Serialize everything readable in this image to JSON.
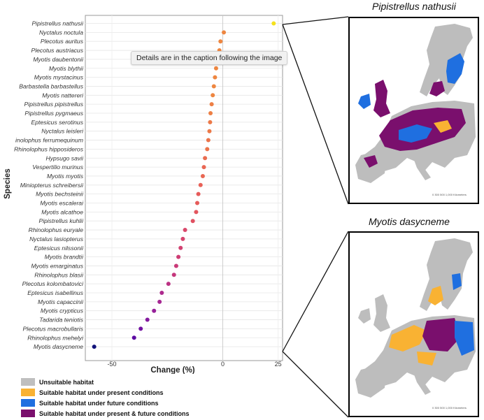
{
  "chart_data": {
    "type": "scatter",
    "ylabel": "Species",
    "xlabel": "Change (%)",
    "x_ticks": [
      "-50",
      "0",
      "25"
    ],
    "x_tick_values": [
      -50,
      0,
      25
    ],
    "xlim": [
      -62,
      27
    ],
    "grid": true,
    "categories": [
      "Pipistrellus nathusii",
      "Nyctalus noctula",
      "Plecotus auritus",
      "Plecotus austriacus",
      "Myotis daubentonii",
      "Myotis blythii",
      "Myotis mystacinus",
      "Barbastella barbastellus",
      "Myotis nattereri",
      "Pipistrellus pipistrellus",
      "Pipistrellus pygmaeus",
      "Eptesicus serotinus",
      "Nyctalus leisleri",
      "inolophus ferrumequinum",
      "Rhinolophus hipposideros",
      "Hypsugo savii",
      "Vespertilio murinus",
      "Myotis myotis",
      "Miniopterus schreibersii",
      "Myotis bechsteinii",
      "Myotis escalerai",
      "Myotis alcathoe",
      "Pipistrellus kuhlii",
      "Rhinolophus euryale",
      "Nyctalus lasiopterus",
      "Eptesicus nilssonii",
      "Myotis brandtii",
      "Myotis emarginatus",
      "Rhinolophus blasii",
      "Plecotus kolombatovici",
      "Eptesicus isabellinus",
      "Myotis capaccinii",
      "Myotis crypticus",
      "Tadarida teniotis",
      "Plecotus macrobullaris",
      "Rhinolophus mehelyi",
      "Myotis dasycneme"
    ],
    "values": [
      23,
      0.5,
      -1,
      -1.5,
      -2,
      -3,
      -3.5,
      -4,
      -4.5,
      -5,
      -5.5,
      -5.7,
      -6,
      -6.5,
      -7,
      -8,
      -8.5,
      -9,
      -10,
      -11,
      -11.5,
      -12,
      -13.5,
      -17,
      -18,
      -19,
      -20,
      -21,
      -22,
      -24.5,
      -27.5,
      -28.5,
      -31,
      -34,
      -37,
      -40,
      -58
    ],
    "point_colors": [
      "#f5e11c",
      "#ee8640",
      "#ee8640",
      "#ee8640",
      "#ee8640",
      "#ee8640",
      "#ee8640",
      "#ee8640",
      "#ee8640",
      "#ed7f45",
      "#ed7f45",
      "#ec7948",
      "#ec7948",
      "#eb734b",
      "#eb734b",
      "#ea6c4f",
      "#e96753",
      "#e96753",
      "#e86157",
      "#e65b5a",
      "#e65b5a",
      "#e3565e",
      "#e05161",
      "#d9476a",
      "#d6446d",
      "#d24171",
      "#ce3d74",
      "#ca3a78",
      "#c5377c",
      "#bb3183",
      "#ad2a8e",
      "#a62793",
      "#962099",
      "#84199e",
      "#7212a1",
      "#5c0aa2",
      "#12137a"
    ]
  },
  "maps": [
    {
      "title": "Pipistrellus nathusii"
    },
    {
      "title": "Myotis dasycneme"
    }
  ],
  "legend": [
    {
      "label": "Unsuitable habitat",
      "color": "#bfbfbf"
    },
    {
      "label": "Suitable habitat under present conditions",
      "color": "#f9b233"
    },
    {
      "label": "Suitable habitat under future conditions",
      "color": "#1f6fe0"
    },
    {
      "label": "Suitable habitat under present & future conditions",
      "color": "#7a0f6d"
    }
  ],
  "tooltip": "Details are in the caption following the image"
}
